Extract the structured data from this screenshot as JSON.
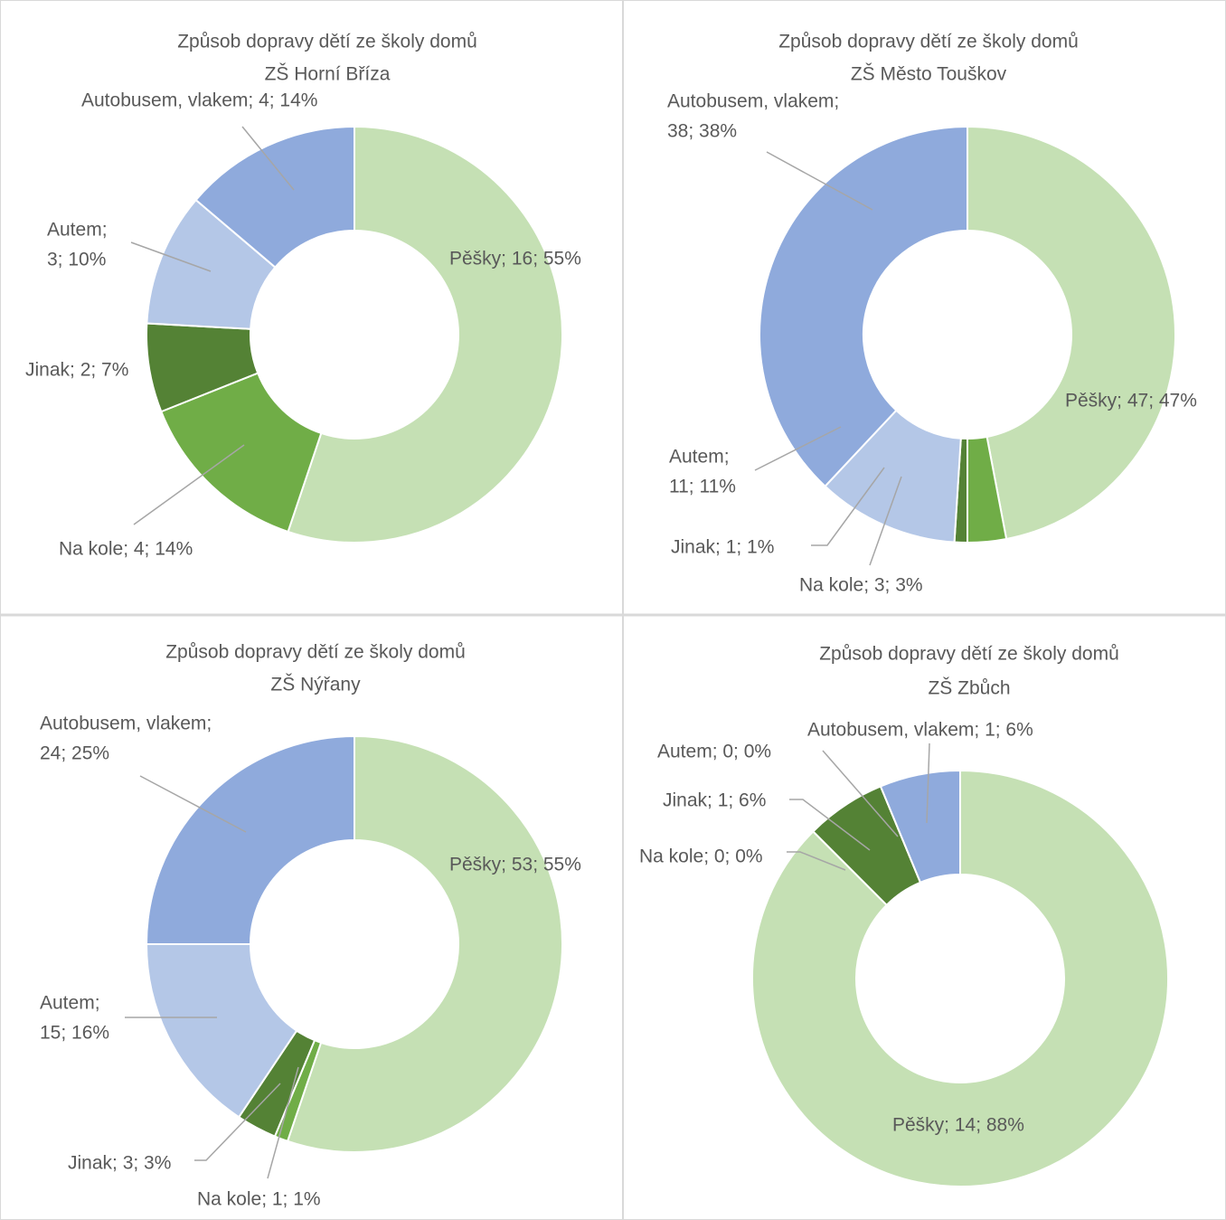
{
  "chart_data": [
    {
      "type": "donut",
      "title": [
        "Způsob dopravy dětí ze školy domů",
        "ZŠ Horní Bříza"
      ],
      "categories": [
        "Pěšky",
        "Na kole",
        "Jinak",
        "Autem",
        "Autobusem, vlakem"
      ],
      "values": [
        16,
        4,
        2,
        3,
        4
      ],
      "value_labels": [
        [
          "Pěšky; 16; 55%"
        ],
        [
          "Na kole; 4; 14%"
        ],
        [
          "Jinak; 2; 7%"
        ],
        [
          "Autem;",
          "3; 10%"
        ],
        [
          "Autobusem, vlakem; 4; 14%"
        ]
      ],
      "colors": [
        "#c5e0b4",
        "#70ad47",
        "#548235",
        "#b4c7e7",
        "#8faadc"
      ]
    },
    {
      "type": "donut",
      "title": [
        "Způsob dopravy dětí ze školy domů",
        "ZŠ Město Touškov"
      ],
      "categories": [
        "Pěšky",
        "Na kole",
        "Jinak",
        "Autem",
        "Autobusem, vlakem"
      ],
      "values": [
        47,
        3,
        1,
        11,
        38
      ],
      "value_labels": [
        [
          "Pěšky; 47; 47%"
        ],
        [
          "Na kole; 3; 3%"
        ],
        [
          "Jinak; 1; 1%"
        ],
        [
          "Autem;",
          "11; 11%"
        ],
        [
          "Autobusem, vlakem;",
          "38; 38%"
        ]
      ],
      "colors": [
        "#c5e0b4",
        "#70ad47",
        "#548235",
        "#b4c7e7",
        "#8faadc"
      ]
    },
    {
      "type": "donut",
      "title": [
        "Způsob dopravy dětí ze školy domů",
        "ZŠ Nýřany"
      ],
      "categories": [
        "Pěšky",
        "Na kole",
        "Jinak",
        "Autem",
        "Autobusem, vlakem"
      ],
      "values": [
        53,
        1,
        3,
        15,
        24
      ],
      "value_labels": [
        [
          "Pěšky; 53; 55%"
        ],
        [
          "Na kole; 1; 1%"
        ],
        [
          "Jinak; 3; 3%"
        ],
        [
          "Autem;",
          "15; 16%"
        ],
        [
          "Autobusem, vlakem;",
          "24; 25%"
        ]
      ],
      "colors": [
        "#c5e0b4",
        "#70ad47",
        "#548235",
        "#b4c7e7",
        "#8faadc"
      ]
    },
    {
      "type": "donut",
      "title": [
        "Způsob dopravy dětí ze školy domů",
        "ZŠ Zbůch"
      ],
      "categories": [
        "Pěšky",
        "Na kole",
        "Jinak",
        "Autem",
        "Autobusem, vlakem"
      ],
      "values": [
        14,
        0,
        1,
        0,
        1
      ],
      "value_labels": [
        [
          "Pěšky; 14; 88%"
        ],
        [
          "Na kole; 0; 0%"
        ],
        [
          "Jinak; 1; 6%"
        ],
        [
          "Autem; 0; 0%"
        ],
        [
          "Autobusem, vlakem; 1; 6%"
        ]
      ],
      "colors": [
        "#c5e0b4",
        "#70ad47",
        "#548235",
        "#b4c7e7",
        "#8faadc"
      ]
    }
  ]
}
